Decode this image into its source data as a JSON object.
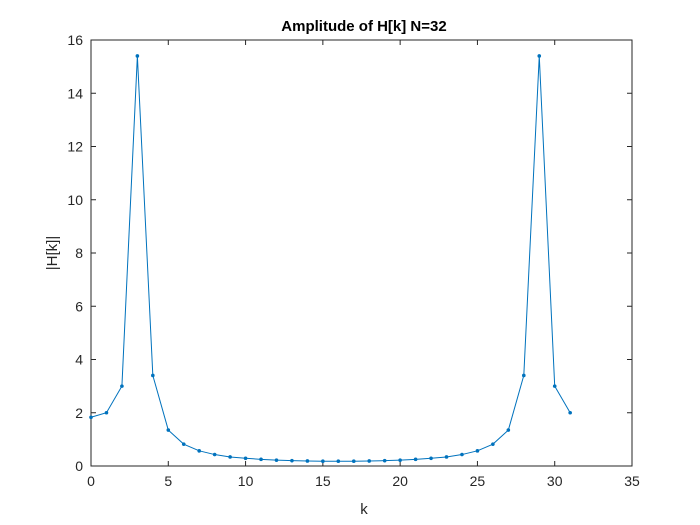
{
  "chart_data": {
    "type": "line",
    "title": "Amplitude of H[k] N=32",
    "xlabel": "k",
    "ylabel": "|H[k]|",
    "xlim": [
      0,
      35
    ],
    "ylim": [
      0,
      16
    ],
    "xticks": [
      "0",
      "5",
      "10",
      "15",
      "20",
      "25",
      "30",
      "35"
    ],
    "yticks": [
      "0",
      "2",
      "4",
      "6",
      "8",
      "10",
      "12",
      "14",
      "16"
    ],
    "grid": false,
    "legend": "none",
    "marker": "dot",
    "color": "#0072BD",
    "x": [
      0,
      1,
      2,
      3,
      4,
      5,
      6,
      7,
      8,
      9,
      10,
      11,
      12,
      13,
      14,
      15,
      16,
      17,
      18,
      19,
      20,
      21,
      22,
      23,
      24,
      25,
      26,
      27,
      28,
      29,
      30,
      31
    ],
    "y": [
      1.83,
      2.0,
      3.0,
      15.4,
      3.4,
      1.35,
      0.82,
      0.57,
      0.43,
      0.34,
      0.29,
      0.25,
      0.22,
      0.2,
      0.19,
      0.18,
      0.18,
      0.18,
      0.19,
      0.2,
      0.22,
      0.25,
      0.29,
      0.34,
      0.43,
      0.57,
      0.82,
      1.35,
      3.4,
      15.4,
      3.0,
      2.0
    ]
  }
}
